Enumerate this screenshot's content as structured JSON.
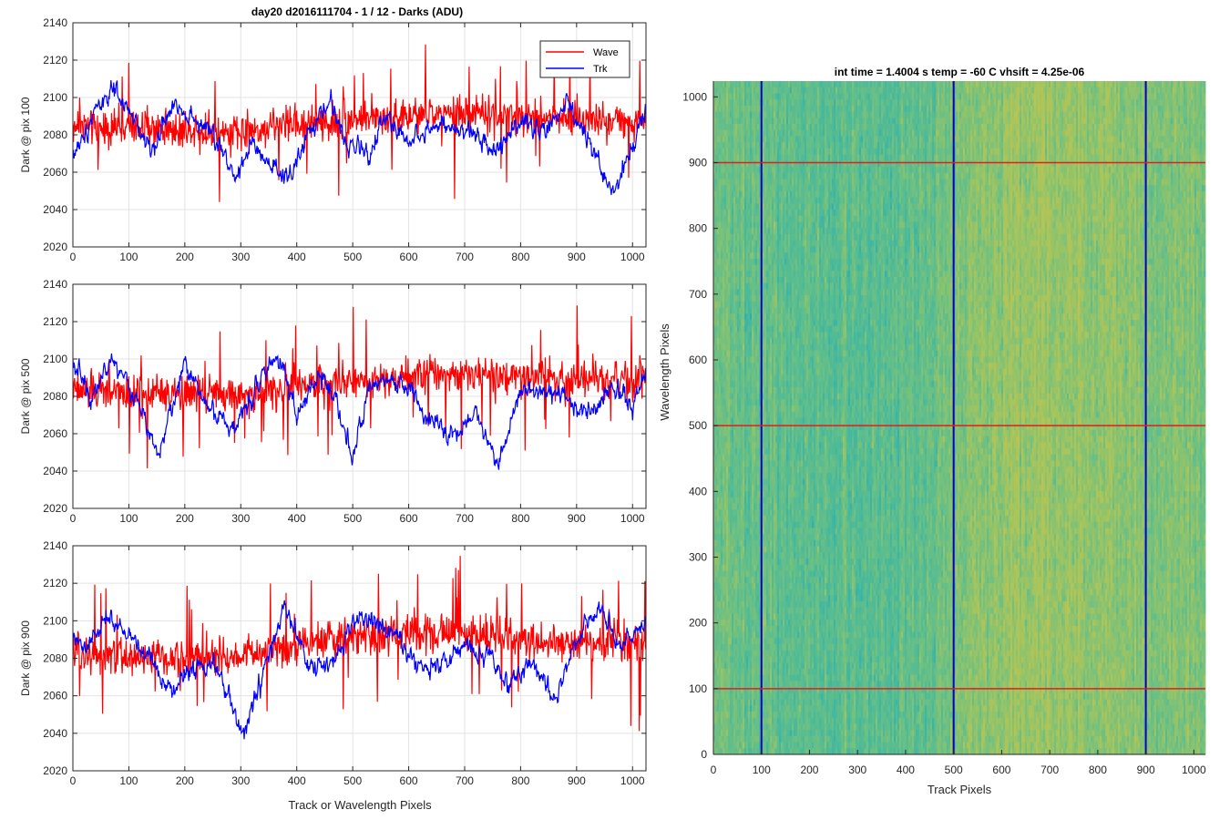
{
  "figure": {
    "title": "day20 d2016111704 - 1 / 12 - Darks (ADU)",
    "shared_xlabel": "Track or Wavelength Pixels"
  },
  "chart_data": [
    {
      "type": "line",
      "ylabel": "Dark @ pix 100",
      "xlim": [
        0,
        1024
      ],
      "ylim": [
        2020,
        2140
      ],
      "xticks": [
        0,
        100,
        200,
        300,
        400,
        500,
        600,
        700,
        800,
        900,
        1000
      ],
      "yticks": [
        2020,
        2040,
        2060,
        2080,
        2100,
        2120,
        2140
      ],
      "grid": true,
      "legend": {
        "placement": "top-right",
        "entries": [
          "Wave",
          "Trk"
        ]
      },
      "series": [
        {
          "name": "Wave",
          "color": "#ff0000",
          "anchors_x": [
            0,
            100,
            200,
            300,
            400,
            500,
            600,
            700,
            800,
            900,
            1024
          ],
          "anchors_y": [
            2085,
            2084,
            2083,
            2082,
            2086,
            2088,
            2090,
            2091,
            2090,
            2088,
            2088
          ],
          "noise": 11
        },
        {
          "name": "Trk",
          "color": "#0000ff",
          "anchors_x": [
            0,
            15,
            40,
            70,
            100,
            140,
            185,
            210,
            250,
            290,
            320,
            350,
            385,
            420,
            460,
            490,
            530,
            560,
            600,
            640,
            680,
            720,
            760,
            800,
            840,
            880,
            920,
            965,
            1000,
            1024
          ],
          "anchors_y": [
            2070,
            2075,
            2095,
            2103,
            2092,
            2072,
            2098,
            2090,
            2080,
            2058,
            2075,
            2062,
            2056,
            2080,
            2098,
            2075,
            2070,
            2090,
            2076,
            2085,
            2082,
            2080,
            2072,
            2090,
            2080,
            2096,
            2078,
            2048,
            2075,
            2095
          ],
          "noise": 4
        }
      ]
    },
    {
      "type": "line",
      "ylabel": "Dark @ pix 500",
      "xlim": [
        0,
        1024
      ],
      "ylim": [
        2020,
        2140
      ],
      "xticks": [
        0,
        100,
        200,
        300,
        400,
        500,
        600,
        700,
        800,
        900,
        1000
      ],
      "yticks": [
        2020,
        2040,
        2060,
        2080,
        2100,
        2120,
        2140
      ],
      "grid": true,
      "series": [
        {
          "name": "Wave",
          "color": "#ff0000",
          "anchors_x": [
            0,
            100,
            200,
            300,
            400,
            500,
            600,
            700,
            800,
            900,
            1024
          ],
          "anchors_y": [
            2083,
            2082,
            2082,
            2081,
            2085,
            2088,
            2092,
            2093,
            2090,
            2089,
            2088
          ],
          "noise": 11
        },
        {
          "name": "Trk",
          "color": "#0000ff",
          "anchors_x": [
            0,
            30,
            70,
            110,
            155,
            200,
            240,
            290,
            330,
            370,
            400,
            440,
            470,
            500,
            530,
            560,
            600,
            640,
            680,
            720,
            760,
            800,
            840,
            880,
            920,
            960,
            1000,
            1024
          ],
          "anchors_y": [
            2100,
            2080,
            2100,
            2080,
            2050,
            2098,
            2075,
            2062,
            2088,
            2102,
            2070,
            2090,
            2080,
            2048,
            2082,
            2088,
            2085,
            2065,
            2060,
            2070,
            2045,
            2085,
            2082,
            2080,
            2070,
            2085,
            2075,
            2095
          ],
          "noise": 4
        }
      ]
    },
    {
      "type": "line",
      "ylabel": "Dark @ pix 900",
      "xlabel": "Track or Wavelength Pixels",
      "xlim": [
        0,
        1024
      ],
      "ylim": [
        2020,
        2140
      ],
      "xticks": [
        0,
        100,
        200,
        300,
        400,
        500,
        600,
        700,
        800,
        900,
        1000
      ],
      "yticks": [
        2020,
        2040,
        2060,
        2080,
        2100,
        2120,
        2140
      ],
      "grid": true,
      "series": [
        {
          "name": "Wave",
          "color": "#ff0000",
          "anchors_x": [
            0,
            100,
            200,
            300,
            400,
            500,
            600,
            700,
            800,
            900,
            1024
          ],
          "anchors_y": [
            2082,
            2081,
            2080,
            2081,
            2088,
            2091,
            2094,
            2094,
            2090,
            2088,
            2088
          ],
          "noise": 11
        },
        {
          "name": "Trk",
          "color": "#0000ff",
          "anchors_x": [
            0,
            25,
            60,
            100,
            140,
            175,
            210,
            250,
            290,
            305,
            340,
            370,
            380,
            420,
            460,
            500,
            540,
            580,
            620,
            660,
            700,
            740,
            780,
            820,
            860,
            900,
            940,
            980,
            1024
          ],
          "anchors_y": [
            2090,
            2084,
            2102,
            2092,
            2080,
            2062,
            2075,
            2078,
            2050,
            2038,
            2072,
            2098,
            2108,
            2075,
            2075,
            2100,
            2100,
            2090,
            2075,
            2078,
            2085,
            2082,
            2065,
            2078,
            2060,
            2090,
            2108,
            2085,
            2100
          ],
          "noise": 4
        }
      ]
    },
    {
      "type": "heatmap",
      "title": "int time = 1.4004 s   temp = -60 C   vhsift = 4.25e-06",
      "xlabel": "Track Pixels",
      "ylabel": "Wavelength Pixels",
      "xlim": [
        0,
        1024
      ],
      "ylim": [
        0,
        1024
      ],
      "xticks": [
        0,
        100,
        200,
        300,
        400,
        500,
        600,
        700,
        800,
        900,
        1000
      ],
      "yticks": [
        0,
        100,
        200,
        300,
        400,
        500,
        600,
        700,
        800,
        900,
        1000
      ],
      "colormap": "parula",
      "column_level": {
        "x": [
          0,
          100,
          200,
          300,
          350,
          450,
          520,
          600,
          700,
          800,
          900,
          1024
        ],
        "level": [
          0.5,
          0.45,
          0.42,
          0.4,
          0.4,
          0.46,
          0.58,
          0.66,
          0.68,
          0.66,
          0.6,
          0.56
        ]
      },
      "colors": [
        "#3fb7a2",
        "#21a7c0",
        "#6cc083",
        "#a9c55b",
        "#c9c14a"
      ],
      "overlays": {
        "vertical_lines": {
          "x": [
            100,
            500,
            900
          ],
          "color": "#0000c8"
        },
        "horizontal_lines": {
          "y": [
            100,
            500,
            900
          ],
          "color": "#e21e1e"
        }
      }
    }
  ]
}
